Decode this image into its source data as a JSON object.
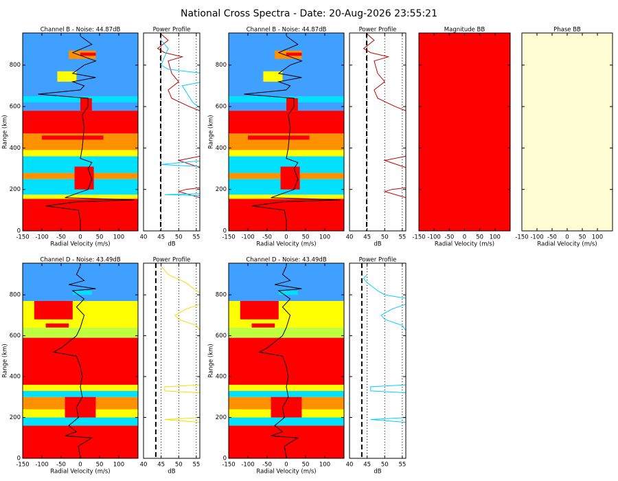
{
  "title": "National Cross Spectra - Date: 20-Aug-2026 23:55:21",
  "chart_data": [
    {
      "type": "heatmap",
      "title": "Channel B - Noise: 44.87dB",
      "xlabel": "Radial Velocity (m/s)",
      "ylabel": "Range (km)",
      "xlim": [
        -150,
        150
      ],
      "xticks": [
        -150,
        -100,
        -50,
        0,
        50,
        100
      ],
      "ylim": [
        0,
        955
      ],
      "yticks": [
        0,
        200,
        400,
        600,
        800
      ],
      "ytick_labels": true,
      "bands": [
        [
          0,
          155,
          "#ff0000"
        ],
        [
          155,
          175,
          "#ffff00"
        ],
        [
          175,
          250,
          "#00e0ff"
        ],
        [
          250,
          280,
          "#ff9000"
        ],
        [
          280,
          360,
          "#00e0ff"
        ],
        [
          360,
          390,
          "#ffff00"
        ],
        [
          390,
          470,
          "#ff9000"
        ],
        [
          470,
          580,
          "#ff0000"
        ],
        [
          580,
          620,
          "#40a0ff"
        ],
        [
          620,
          650,
          "#00e0ff"
        ],
        [
          650,
          955,
          "#40a0ff"
        ]
      ],
      "cores": [
        [
          200,
          310,
          -15,
          35,
          "#ff0000"
        ],
        [
          440,
          460,
          -100,
          60,
          "#ff0000"
        ],
        [
          580,
          640,
          0,
          30,
          "#ff0000"
        ],
        [
          720,
          770,
          -60,
          -10,
          "#ffff00"
        ],
        [
          830,
          870,
          -30,
          40,
          "#ff9000"
        ],
        [
          845,
          860,
          0,
          40,
          "#ff0000"
        ]
      ],
      "series": [
        {
          "color": "#000000",
          "x": [
            0,
            0,
            -5,
            -90,
            -10,
            140,
            -40,
            20,
            30,
            20,
            30,
            0,
            5,
            10,
            5,
            20,
            20,
            -110,
            0,
            10,
            -20,
            40,
            -20,
            10,
            40,
            -20,
            30,
            0
          ],
          "y": [
            0,
            50,
            100,
            120,
            140,
            150,
            160,
            200,
            250,
            300,
            330,
            350,
            400,
            500,
            560,
            600,
            640,
            660,
            680,
            700,
            720,
            740,
            760,
            800,
            820,
            860,
            900,
            940
          ]
        }
      ]
    },
    {
      "type": "profile",
      "title": "Power Profile",
      "xlabel": "dB",
      "xlim": [
        40,
        56
      ],
      "xticks": [
        40,
        45,
        50,
        55
      ],
      "ylim": [
        0,
        955
      ],
      "yticks": [
        0,
        200,
        400,
        600,
        800
      ],
      "ytick_labels": false,
      "grid": true,
      "noise_level": 44.87,
      "series": [
        {
          "color": "#c00000",
          "x": [
            57,
            56,
            50,
            52,
            57,
            57,
            50,
            56,
            57,
            57,
            56,
            53,
            48,
            47,
            50,
            48,
            47,
            51,
            46,
            44,
            47,
            45
          ],
          "y": [
            150,
            160,
            190,
            200,
            210,
            300,
            340,
            360,
            380,
            560,
            580,
            600,
            640,
            680,
            720,
            760,
            820,
            840,
            860,
            880,
            920,
            950
          ]
        },
        {
          "color": "#00d0ff",
          "x": [
            57,
            46,
            57,
            57,
            45,
            57,
            57,
            54,
            51,
            57,
            57,
            47,
            45,
            47,
            45
          ],
          "y": [
            170,
            175,
            180,
            310,
            320,
            340,
            580,
            620,
            700,
            720,
            760,
            780,
            800,
            880,
            920
          ]
        }
      ]
    },
    {
      "type": "heatmap",
      "title": "Channel B - Noise: 44.87dB",
      "xlabel": "Radial Velocity (m/s)",
      "ylabel": "Range (km)",
      "xlim": [
        -150,
        150
      ],
      "xticks": [
        -150,
        -100,
        -50,
        0,
        50,
        100
      ],
      "ylim": [
        0,
        955
      ],
      "yticks": [
        0,
        200,
        400,
        600,
        800
      ],
      "ytick_labels": true,
      "bands": [
        [
          0,
          155,
          "#ff0000"
        ],
        [
          155,
          175,
          "#ffff00"
        ],
        [
          175,
          250,
          "#00e0ff"
        ],
        [
          250,
          280,
          "#ff9000"
        ],
        [
          280,
          360,
          "#00e0ff"
        ],
        [
          360,
          390,
          "#ffff00"
        ],
        [
          390,
          470,
          "#ff9000"
        ],
        [
          470,
          580,
          "#ff0000"
        ],
        [
          580,
          620,
          "#40a0ff"
        ],
        [
          620,
          650,
          "#00e0ff"
        ],
        [
          650,
          955,
          "#40a0ff"
        ]
      ],
      "cores": [
        [
          200,
          310,
          -15,
          35,
          "#ff0000"
        ],
        [
          440,
          460,
          -100,
          60,
          "#ff0000"
        ],
        [
          580,
          640,
          0,
          30,
          "#ff0000"
        ],
        [
          720,
          770,
          -60,
          -10,
          "#ffff00"
        ],
        [
          830,
          870,
          -30,
          40,
          "#ff9000"
        ],
        [
          845,
          860,
          0,
          40,
          "#ff0000"
        ]
      ],
      "series": [
        {
          "color": "#000000",
          "x": [
            0,
            0,
            -5,
            -90,
            -10,
            140,
            -40,
            20,
            30,
            20,
            30,
            0,
            5,
            10,
            5,
            20,
            20,
            -110,
            0,
            10,
            -20,
            40,
            -20,
            10,
            40,
            -20,
            30,
            0
          ],
          "y": [
            0,
            50,
            100,
            120,
            140,
            150,
            160,
            200,
            250,
            300,
            330,
            350,
            400,
            500,
            560,
            600,
            640,
            660,
            680,
            700,
            720,
            740,
            760,
            800,
            820,
            860,
            900,
            940
          ]
        }
      ]
    },
    {
      "type": "profile",
      "title": "Power Profile",
      "xlabel": "dB",
      "xlim": [
        40,
        56
      ],
      "xticks": [
        40,
        45,
        50,
        55
      ],
      "ylim": [
        0,
        955
      ],
      "yticks": [
        0,
        200,
        400,
        600,
        800
      ],
      "ytick_labels": false,
      "grid": true,
      "noise_level": 44.87,
      "series": [
        {
          "color": "#c00000",
          "x": [
            57,
            56,
            50,
            52,
            57,
            57,
            50,
            56,
            57,
            57,
            56,
            53,
            48,
            47,
            50,
            48,
            47,
            51,
            46,
            44,
            47,
            45
          ],
          "y": [
            150,
            160,
            190,
            200,
            210,
            300,
            340,
            360,
            380,
            560,
            580,
            600,
            640,
            680,
            720,
            760,
            820,
            840,
            860,
            880,
            920,
            950
          ]
        }
      ]
    },
    {
      "type": "fill",
      "title": "Magnitude BB",
      "xlabel": "Radial Velocity (m/s)",
      "xlim": [
        -150,
        150
      ],
      "xticks": [
        -150,
        -100,
        -50,
        0,
        50,
        100
      ],
      "ylim": [
        0,
        955
      ],
      "yticks": [
        0,
        200,
        400,
        600,
        800
      ],
      "ytick_labels": false,
      "color": "#ff0000"
    },
    {
      "type": "fill",
      "title": "Phase BB",
      "xlabel": "Radial Velocity (m/s)",
      "xlim": [
        -150,
        150
      ],
      "xticks": [
        -150,
        -100,
        -50,
        0,
        50,
        100
      ],
      "ylim": [
        0,
        955
      ],
      "yticks": [
        0,
        200,
        400,
        600,
        800
      ],
      "ytick_labels": false,
      "color": "#fffdd4"
    },
    {
      "type": "heatmap",
      "title": "Channel D - Noise: 43.49dB",
      "xlabel": "Radial Velocity (m/s)",
      "ylabel": "Range (km)",
      "xlim": [
        -150,
        150
      ],
      "xticks": [
        -150,
        -100,
        -50,
        0,
        50,
        100
      ],
      "ylim": [
        0,
        955
      ],
      "yticks": [
        0,
        200,
        400,
        600,
        800
      ],
      "ytick_labels": true,
      "bands": [
        [
          0,
          160,
          "#ff0000"
        ],
        [
          160,
          200,
          "#00e0ff"
        ],
        [
          200,
          240,
          "#ffff00"
        ],
        [
          240,
          300,
          "#ff9000"
        ],
        [
          300,
          330,
          "#00e0ff"
        ],
        [
          330,
          360,
          "#ffff00"
        ],
        [
          360,
          590,
          "#ff0000"
        ],
        [
          590,
          640,
          "#c0ff40"
        ],
        [
          640,
          680,
          "#ffff00"
        ],
        [
          680,
          770,
          "#ffff00"
        ],
        [
          770,
          955,
          "#40a0ff"
        ]
      ],
      "cores": [
        [
          200,
          300,
          -40,
          40,
          "#ff0000"
        ],
        [
          640,
          660,
          -90,
          -30,
          "#ff0000"
        ],
        [
          680,
          770,
          -120,
          -20,
          "#ff0000"
        ],
        [
          800,
          820,
          -20,
          30,
          "#00e0ff"
        ]
      ],
      "series": [
        {
          "color": "#000000",
          "x": [
            0,
            -5,
            30,
            -40,
            -10,
            -30,
            -5,
            -10,
            5,
            0,
            5,
            0,
            -10,
            -70,
            -50,
            -10,
            0,
            10,
            -10,
            10,
            -20,
            40,
            -30,
            10,
            -10,
            0
          ],
          "y": [
            0,
            60,
            100,
            110,
            130,
            160,
            200,
            250,
            300,
            350,
            400,
            450,
            500,
            520,
            540,
            600,
            640,
            700,
            740,
            780,
            820,
            830,
            850,
            870,
            900,
            940
          ]
        }
      ]
    },
    {
      "type": "profile",
      "title": "Power Profile",
      "xlabel": "dB",
      "xlim": [
        40,
        56
      ],
      "xticks": [
        40,
        45,
        50,
        55
      ],
      "ylim": [
        0,
        955
      ],
      "yticks": [
        0,
        200,
        400,
        600,
        800
      ],
      "ytick_labels": false,
      "grid": true,
      "noise_level": 43.49,
      "series": [
        {
          "color": "#f0e000",
          "x": [
            57,
            46,
            57,
            57,
            46,
            46,
            57,
            57,
            55,
            50,
            49,
            52,
            57,
            57,
            55,
            52,
            47,
            45
          ],
          "y": [
            175,
            190,
            200,
            320,
            330,
            350,
            360,
            600,
            650,
            680,
            700,
            730,
            760,
            800,
            820,
            860,
            900,
            940
          ]
        }
      ]
    },
    {
      "type": "heatmap",
      "title": "Channel D - Noise: 43.49dB",
      "xlabel": "Radial Velocity (m/s)",
      "ylabel": "Range (km)",
      "xlim": [
        -150,
        150
      ],
      "xticks": [
        -150,
        -100,
        -50,
        0,
        50,
        100
      ],
      "ylim": [
        0,
        955
      ],
      "yticks": [
        0,
        200,
        400,
        600,
        800
      ],
      "ytick_labels": true,
      "bands": [
        [
          0,
          160,
          "#ff0000"
        ],
        [
          160,
          200,
          "#00e0ff"
        ],
        [
          200,
          240,
          "#ffff00"
        ],
        [
          240,
          300,
          "#ff9000"
        ],
        [
          300,
          330,
          "#00e0ff"
        ],
        [
          330,
          360,
          "#ffff00"
        ],
        [
          360,
          590,
          "#ff0000"
        ],
        [
          590,
          640,
          "#c0ff40"
        ],
        [
          640,
          680,
          "#ffff00"
        ],
        [
          680,
          770,
          "#ffff00"
        ],
        [
          770,
          955,
          "#40a0ff"
        ]
      ],
      "cores": [
        [
          200,
          300,
          -40,
          40,
          "#ff0000"
        ],
        [
          640,
          660,
          -90,
          -30,
          "#ff0000"
        ],
        [
          680,
          770,
          -120,
          -20,
          "#ff0000"
        ],
        [
          800,
          820,
          -20,
          30,
          "#00e0ff"
        ]
      ],
      "series": [
        {
          "color": "#000000",
          "x": [
            0,
            -5,
            30,
            -40,
            -10,
            -30,
            -5,
            -10,
            5,
            0,
            5,
            0,
            -10,
            -70,
            -50,
            -10,
            0,
            10,
            -10,
            10,
            -20,
            40,
            -30,
            10,
            -10,
            0
          ],
          "y": [
            0,
            60,
            100,
            110,
            130,
            160,
            200,
            250,
            300,
            350,
            400,
            450,
            500,
            520,
            540,
            600,
            640,
            700,
            740,
            780,
            820,
            830,
            850,
            870,
            900,
            940
          ]
        }
      ]
    },
    {
      "type": "profile",
      "title": "Power Profile",
      "xlabel": "dB",
      "xlim": [
        40,
        56
      ],
      "xticks": [
        40,
        45,
        50,
        55
      ],
      "ylim": [
        0,
        955
      ],
      "yticks": [
        0,
        200,
        400,
        600,
        800
      ],
      "ytick_labels": false,
      "grid": true,
      "noise_level": 43.49,
      "series": [
        {
          "color": "#00d0ff",
          "x": [
            57,
            46,
            57,
            57,
            46,
            46,
            57,
            57,
            55,
            50,
            49,
            52,
            57,
            57,
            50,
            48,
            45,
            44,
            45
          ],
          "y": [
            175,
            190,
            200,
            320,
            330,
            350,
            360,
            600,
            650,
            680,
            700,
            730,
            760,
            780,
            800,
            820,
            860,
            880,
            900
          ]
        }
      ]
    }
  ]
}
